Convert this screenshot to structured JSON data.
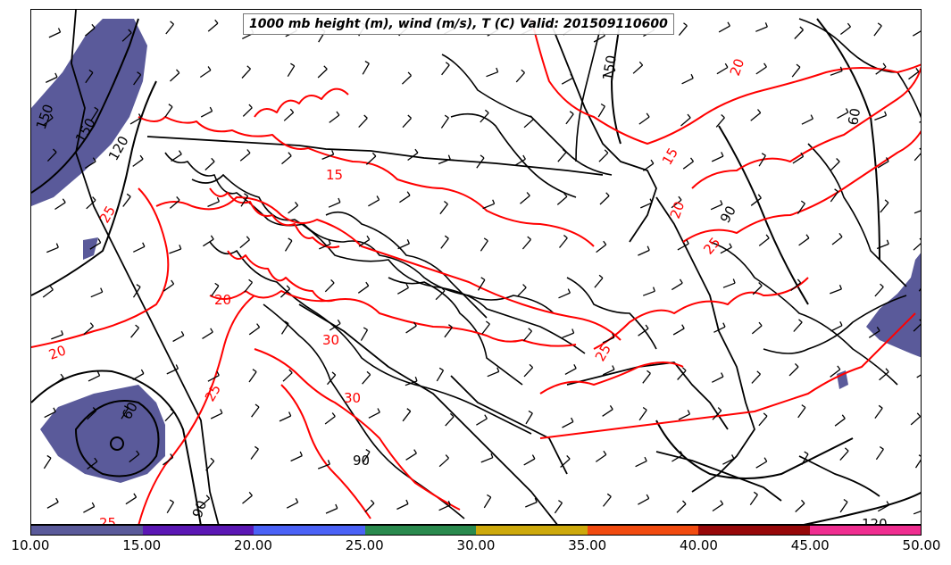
{
  "title": "1000 mb height (m), wind (m/s), T (C) Valid: 201509110600",
  "colorbar": {
    "colors": [
      "#5a5a9a",
      "#5b17b4",
      "#4b62f6",
      "#2a8a4e",
      "#cda90c",
      "#f14b10",
      "#970809",
      "#ef2e90"
    ],
    "ticks": [
      "10.00",
      "15.00",
      "20.00",
      "25.00",
      "30.00",
      "35.00",
      "40.00",
      "45.00",
      "50.00"
    ]
  },
  "height_contour_labels": [
    "150",
    "120",
    "150",
    "90",
    "60",
    "90",
    "120",
    "90",
    "150",
    "60"
  ],
  "temperature_contour_labels": [
    "20",
    "25",
    "15",
    "25",
    "20",
    "25",
    "30",
    "30",
    "25",
    "20",
    "20",
    "25",
    "15"
  ],
  "contour_colors": {
    "height": "#000000",
    "temperature": "#ff0000",
    "wind_shading": "#5a5a9a"
  }
}
